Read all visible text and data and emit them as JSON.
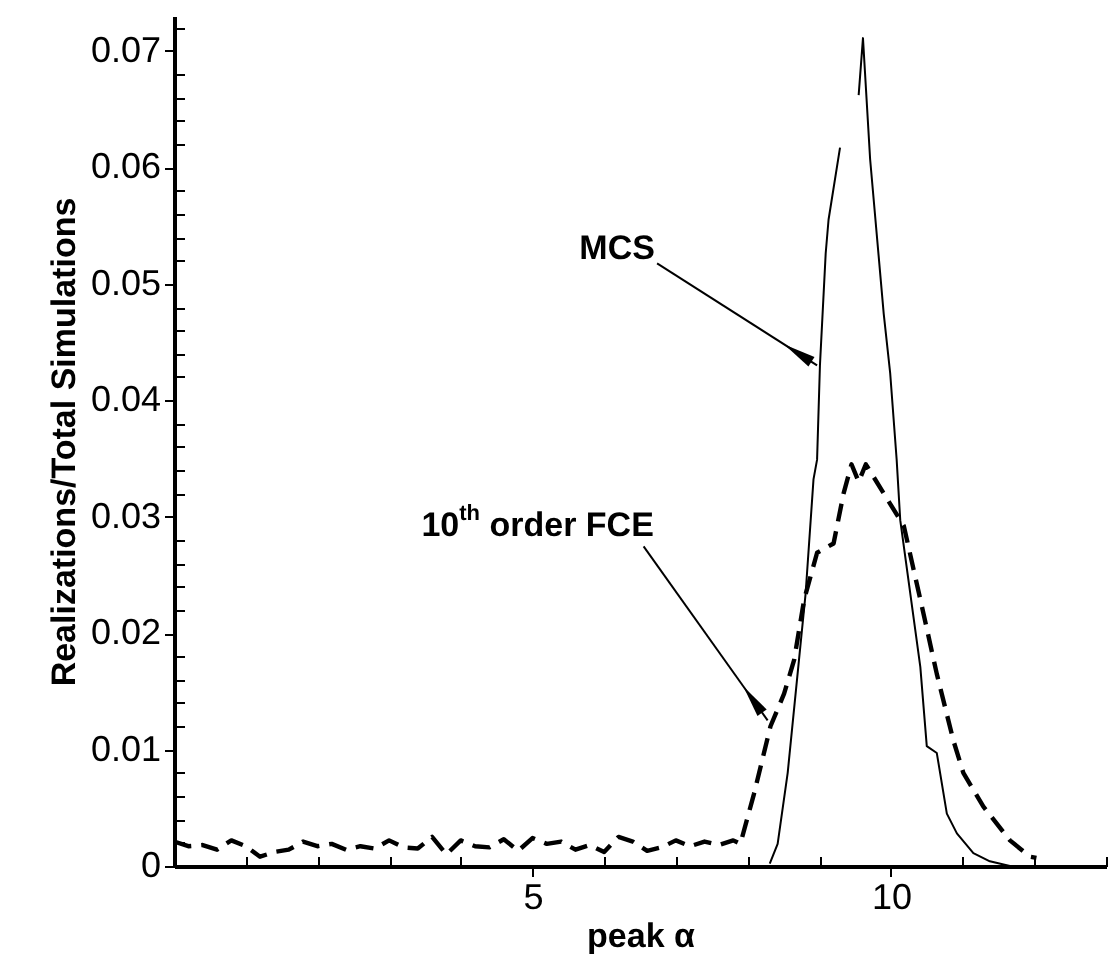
{
  "chart_data": {
    "type": "line",
    "xlabel": "peak α",
    "ylabel": "Realizations/Total Simulations",
    "xlim": [
      0,
      13
    ],
    "ylim": [
      0,
      0.073
    ],
    "xticks": [
      {
        "value": 1,
        "label": null
      },
      {
        "value": 2,
        "label": null
      },
      {
        "value": 3,
        "label": null
      },
      {
        "value": 4,
        "label": null
      },
      5,
      {
        "value": 6,
        "label": null
      },
      {
        "value": 7,
        "label": null
      },
      {
        "value": 8,
        "label": null
      },
      {
        "value": 9,
        "label": null
      },
      10,
      {
        "value": 11,
        "label": null
      },
      {
        "value": 12,
        "label": null
      },
      {
        "value": 13,
        "label": null
      }
    ],
    "yticks": [
      0,
      {
        "value": 0.002,
        "label": null
      },
      {
        "value": 0.004,
        "label": null
      },
      {
        "value": 0.006,
        "label": null
      },
      {
        "value": 0.008,
        "label": null
      },
      0.01,
      {
        "value": 0.012,
        "label": null
      },
      {
        "value": 0.014,
        "label": null
      },
      {
        "value": 0.016,
        "label": null
      },
      {
        "value": 0.018,
        "label": null
      },
      0.02,
      {
        "value": 0.022,
        "label": null
      },
      {
        "value": 0.024,
        "label": null
      },
      {
        "value": 0.026,
        "label": null
      },
      {
        "value": 0.028,
        "label": null
      },
      0.03,
      {
        "value": 0.032,
        "label": null
      },
      {
        "value": 0.034,
        "label": null
      },
      {
        "value": 0.036,
        "label": null
      },
      {
        "value": 0.038,
        "label": null
      },
      0.04,
      {
        "value": 0.042,
        "label": null
      },
      {
        "value": 0.044,
        "label": null
      },
      {
        "value": 0.046,
        "label": null
      },
      {
        "value": 0.048,
        "label": null
      },
      0.05,
      {
        "value": 0.052,
        "label": null
      },
      {
        "value": 0.054,
        "label": null
      },
      {
        "value": 0.056,
        "label": null
      },
      {
        "value": 0.058,
        "label": null
      },
      0.06,
      {
        "value": 0.062,
        "label": null
      },
      {
        "value": 0.064,
        "label": null
      },
      {
        "value": 0.066,
        "label": null
      },
      {
        "value": 0.068,
        "label": null
      },
      0.07,
      {
        "value": 0.072,
        "label": null
      }
    ],
    "series": [
      {
        "color": "#000000",
        "line_style": "solid",
        "x": [
          8.31,
          8.42,
          8.56,
          8.81,
          8.92,
          8.97,
          9.01,
          9.09,
          9.13,
          9.29,
          9.38,
          9.43,
          9.55,
          9.61,
          9.71,
          9.9,
          9.99,
          10.08,
          10.13,
          10.41,
          10.5,
          10.64,
          10.78,
          10.92,
          11.15,
          11.38,
          11.66
        ],
        "values": [
          0.0002,
          0.0019,
          0.008,
          0.0234,
          0.0332,
          0.0349,
          0.043,
          0.0526,
          0.0555,
          0.0617,
          null,
          null,
          0.0662,
          0.0711,
          0.0607,
          0.0474,
          0.0423,
          0.0349,
          0.0297,
          0.0171,
          0.0103,
          0.0097,
          0.0045,
          0.0028,
          0.0011,
          0.0004,
          0
        ]
      },
      {
        "color": "#000000",
        "line_style": "dashed",
        "x": [
          0,
          0.2,
          0.4,
          0.6,
          0.8,
          1.0,
          1.2,
          1.4,
          1.6,
          1.8,
          2.0,
          2.2,
          2.4,
          2.6,
          2.8,
          3.0,
          3.2,
          3.4,
          3.6,
          3.8,
          4.0,
          4.2,
          4.4,
          4.6,
          4.8,
          5.0,
          5.2,
          5.4,
          5.6,
          5.8,
          6.0,
          6.2,
          6.4,
          6.6,
          6.8,
          7.0,
          7.2,
          7.4,
          7.6,
          7.8,
          7.9,
          8.09,
          8.32,
          8.51,
          8.65,
          8.79,
          8.97,
          9.2,
          9.34,
          9.45,
          9.55,
          9.65,
          9.9,
          10.18,
          10.41,
          10.64,
          10.87,
          11.01,
          11.29,
          11.66,
          11.94,
          12.03
        ],
        "values": [
          0.0021,
          0.0017,
          0.0018,
          0.0014,
          0.0022,
          0.0017,
          0.0008,
          0.0012,
          0.0014,
          0.0021,
          0.0017,
          0.0019,
          0.0014,
          0.0017,
          0.0015,
          0.0022,
          0.0016,
          0.0015,
          0.0025,
          0.001,
          0.0022,
          0.0017,
          0.0016,
          0.0023,
          0.0013,
          0.0024,
          0.0019,
          0.0021,
          0.0014,
          0.0018,
          0.0012,
          0.0025,
          0.0021,
          0.0013,
          0.0016,
          0.0022,
          0.0017,
          0.0021,
          0.0018,
          0.0022,
          0.0019,
          0.0062,
          0.012,
          0.0148,
          0.0177,
          0.0229,
          0.0269,
          0.0277,
          0.032,
          0.0345,
          0.033,
          0.0345,
          0.032,
          0.0292,
          0.0229,
          0.0165,
          0.0108,
          0.008,
          0.0051,
          0.0022,
          0.0008,
          0.0007
        ]
      }
    ],
    "annotations": [
      {
        "text": "MCS",
        "x": 8.97,
        "y": 0.043
      },
      {
        "text": "10$^{th}$ order FCE",
        "x": 8.28,
        "y": 0.0125
      }
    ]
  }
}
